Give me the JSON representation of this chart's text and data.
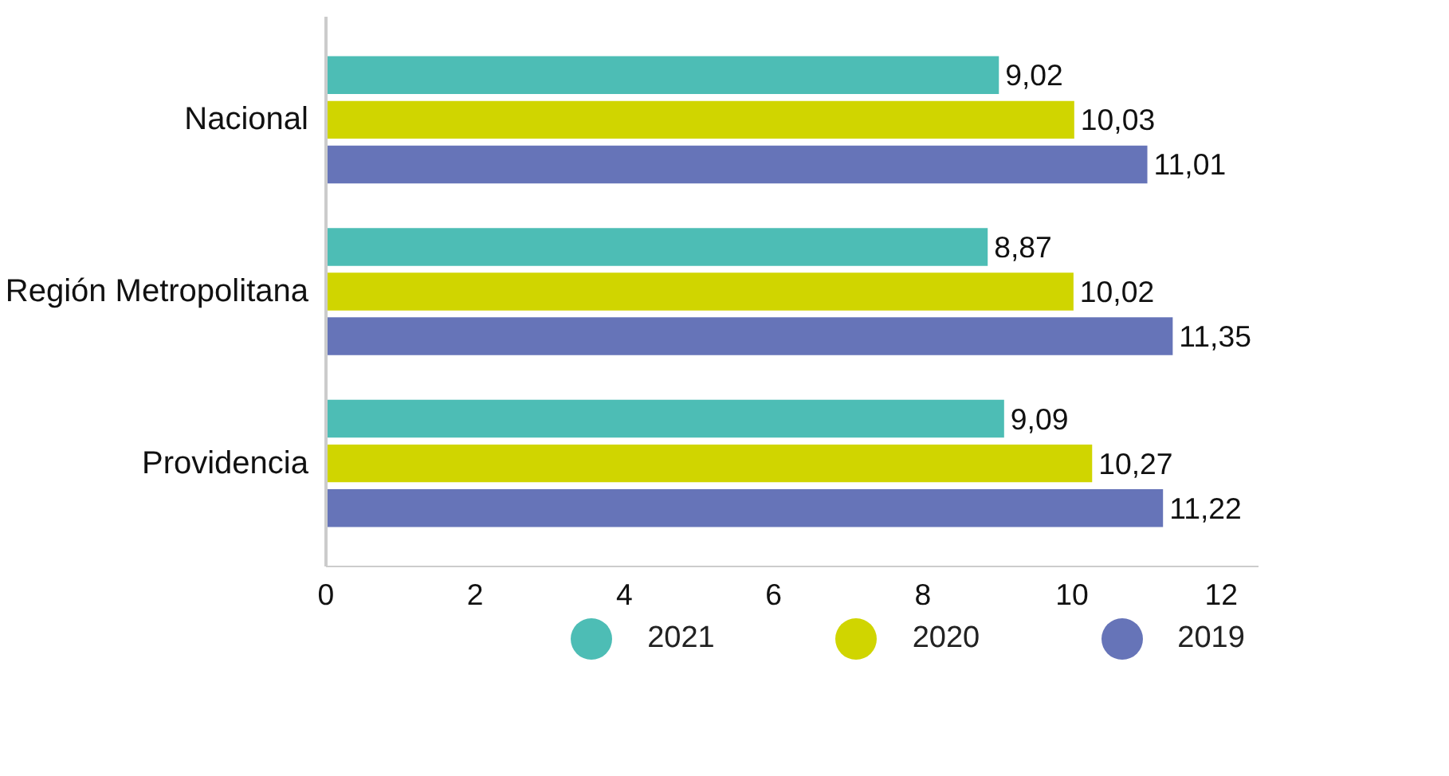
{
  "chart_data": {
    "type": "bar",
    "orientation": "horizontal",
    "categories": [
      "Nacional",
      "Región Metropolitana",
      "Providencia"
    ],
    "series": [
      {
        "name": "2021",
        "color": "#4dbdb5",
        "values": [
          9.02,
          8.87,
          9.09
        ],
        "value_labels": [
          "9,02",
          "8,87",
          "9,09"
        ]
      },
      {
        "name": "2020",
        "color": "#d0d500",
        "values": [
          10.03,
          10.02,
          10.27
        ],
        "value_labels": [
          "10,03",
          "10,02",
          "10,27"
        ]
      },
      {
        "name": "2019",
        "color": "#6674b8",
        "values": [
          11.01,
          11.35,
          11.22
        ],
        "value_labels": [
          "11,01",
          "11,35",
          "11,22"
        ]
      }
    ],
    "xlim": [
      0,
      12.5
    ],
    "xticks": [
      0,
      2,
      4,
      6,
      8,
      10,
      12
    ],
    "grid": false,
    "legend": "bottom"
  }
}
